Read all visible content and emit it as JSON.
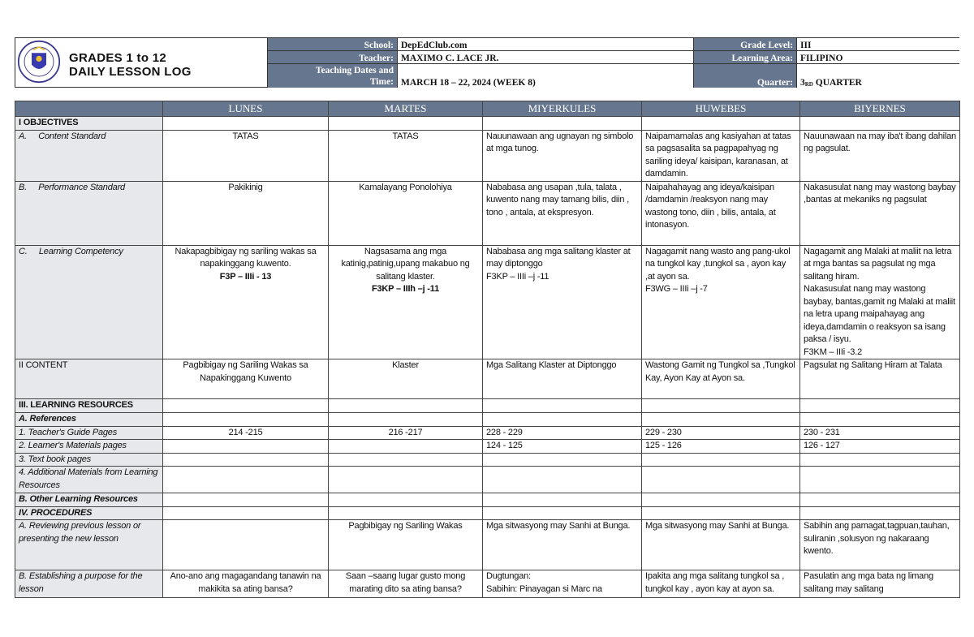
{
  "header": {
    "title_line1": "GRADES 1 to 12",
    "title_line2": "DAILY LESSON LOG",
    "logo_text": "KAGAWARAN NG EDUKASYON",
    "school_label": "School:",
    "school": "DepEdClub.com",
    "teacher_label": "Teacher:",
    "teacher": "MAXIMO C. LACE JR.",
    "dates_label_1": "Teaching Dates and",
    "dates_label_2": "Time:",
    "dates": "MARCH 18 – 22, 2024 (WEEK 8)",
    "grade_label": "Grade Level:",
    "grade": "III",
    "area_label": "Learning Area:",
    "area": "FILIPINO",
    "quarter_label": "Quarter:",
    "quarter_num": "3",
    "quarter_sup": "RD",
    "quarter_text": " QUARTER"
  },
  "table": {
    "days": [
      "LUNES",
      "MARTES",
      "MIYERKULES",
      "HUWEBES",
      "BIYERNES"
    ],
    "rows": [
      {
        "label": "I OBJECTIVES",
        "style": "b",
        "h": 16,
        "cells": [
          "",
          "",
          "",
          "",
          ""
        ]
      },
      {
        "label": "A.     Content Standard",
        "style": "it",
        "h": 63,
        "cells": [
          "TATAS",
          "TATAS",
          "Nauunawaan ang ugnayan ng simbolo at mga tunog.",
          "Naipamamalas ang kasiyahan at tatas sa pagsasalita sa pagpapahyag ng sariling ideya/ kaisipan, karanasan, at damdamin.",
          "Nauunawaan na may iba't ibang dahilan ng pagsulat."
        ]
      },
      {
        "label": "B.     Performance Standard",
        "style": "it",
        "h": 79,
        "cells": [
          "Pakikinig",
          "Kamalayang Ponolohiya",
          "Nababasa ang usapan ,tula, talata , kuwento nang may tamang bilis, diin , tono , antala, at ekspresyon.",
          "Naipahahayag ang ideya/kaisipan /damdamin /reaksyon nang may wastong tono, diin , bilis, antala, at intonasyon.",
          "Nakasusulat nang may wastong baybay ,bantas at mekaniks ng pagsulat"
        ]
      },
      {
        "label": "C.     Learning Competency",
        "style": "it",
        "h": 140,
        "cells": [
          "Nakapagbibigay ng sariling wakas sa napakinggang kuwento.",
          "Nagsasama ang mga katinig,patinig,upang makabuo ng salitang klaster.",
          "Nababasa ang mga salitang klaster at may diptonggo\nF3KP – IIIi –j -11",
          "Nagagamit nang wasto ang pang-ukol na tungkol kay ,tungkol sa , ayon kay ,at ayon sa.\nF3WG – IIIi –j -7",
          "Nagagamit ang Malaki at maliit na letra at mga bantas sa pagsulat ng mga salitang hiram.\nNakasusulat nang may wastong baybay, bantas,gamit ng Malaki at maliit na letra upang maipahayag ang ideya,damdamin o reaksyon sa isang paksa / isyu.\nF3KM – IIIi -3.2"
        ],
        "codes": [
          "F3P  – IIIi - 13",
          "F3KP – IIIh –j -11"
        ]
      },
      {
        "label": "II CONTENT",
        "style": "",
        "h": 49,
        "cells": [
          "Pagbibigay ng Sariling Wakas sa Napakinggang Kuwento",
          "Klaster",
          "Mga Salitang Klaster at Diptonggo",
          "Wastong Gamit ng Tungkol sa ,Tungkol Kay, Ayon Kay at Ayon sa.",
          "Pagsulat ng Salitang Hiram at Talata"
        ]
      },
      {
        "label": "III. LEARNING RESOURCES",
        "style": "b",
        "h": 17,
        "cells": [
          "",
          "",
          "",
          "",
          ""
        ]
      },
      {
        "label": "A. References",
        "style": "b it",
        "h": 16,
        "cells": [
          "",
          "",
          "",
          "",
          ""
        ]
      },
      {
        "label": "1. Teacher's Guide Pages",
        "style": "it",
        "h": 16,
        "cells": [
          "214 -215",
          "216 -217",
          "228 - 229",
          "229 - 230",
          "230 - 231"
        ]
      },
      {
        "label": "2. Learner's Materials pages",
        "style": "it",
        "h": 16,
        "cells": [
          "",
          "",
          "124 - 125",
          "125 - 126",
          "126 - 127"
        ]
      },
      {
        "label": "3. Text book pages",
        "style": "it",
        "h": 16,
        "cells": [
          "",
          "",
          "",
          "",
          ""
        ]
      },
      {
        "label": "4. Additional Materials from Learning Resources",
        "style": "it",
        "h": 33,
        "cells": [
          "",
          "",
          "",
          "",
          ""
        ]
      },
      {
        "label": "B. Other Learning Resources",
        "style": "b it",
        "h": 16,
        "cells": [
          "",
          "",
          "",
          "",
          ""
        ]
      },
      {
        "label": "IV. PROCEDURES",
        "style": "b it",
        "h": 16,
        "cells": [
          "",
          "",
          "",
          "",
          ""
        ]
      },
      {
        "label": "A. Reviewing previous lesson or presenting the new lesson",
        "style": "it",
        "h": 62,
        "cells": [
          "",
          "Pagbibigay ng Sariling Wakas",
          "Mga sitwasyong may Sanhi at Bunga.",
          "Mga sitwasyong may Sanhi at Bunga.",
          "Sabihin ang pamagat,tagpuan,tauhan, suliranin ,solusyon ng nakaraang kwento."
        ]
      },
      {
        "label": "B. Establishing a purpose for the lesson",
        "style": "it",
        "h": 34,
        "cells": [
          "Ano-ano ang magagandang tanawin na makikita sa ating bansa?",
          "Saan –saang lugar gusto mong marating dito sa ating bansa?",
          "Dugtungan:\nSabihin: Pinayagan si Marc na",
          "Ipakita ang mga salitang tungkol sa , tungkol kay , ayon kay at ayon sa.",
          "Pasulatin ang mga bata ng limang salitang may salitang"
        ]
      }
    ]
  }
}
